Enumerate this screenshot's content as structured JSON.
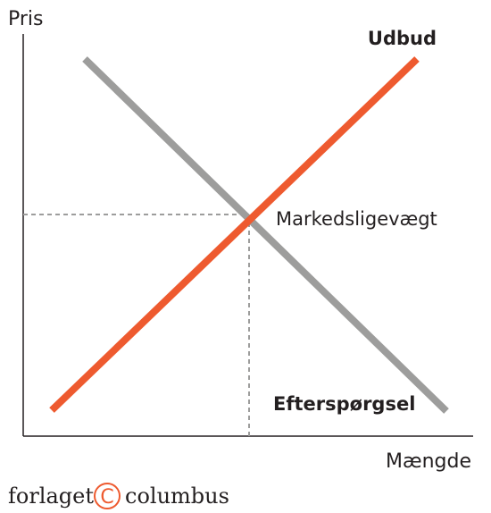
{
  "axes": {
    "y_label": "Pris",
    "x_label": "Mængde"
  },
  "curves": {
    "supply": {
      "label": "Udbud",
      "color": "#ee5a2f"
    },
    "demand": {
      "label": "Efterspørgsel",
      "color": "#9d9d9c"
    }
  },
  "equilibrium": {
    "label": "Markedsligevægt"
  },
  "publisher": {
    "name_left": "forlaget",
    "symbol": "C",
    "name_right": "columbus",
    "accent_color": "#ee5a2f"
  },
  "colors": {
    "axis": "#231f20",
    "guide": "#9d9d9c"
  }
}
